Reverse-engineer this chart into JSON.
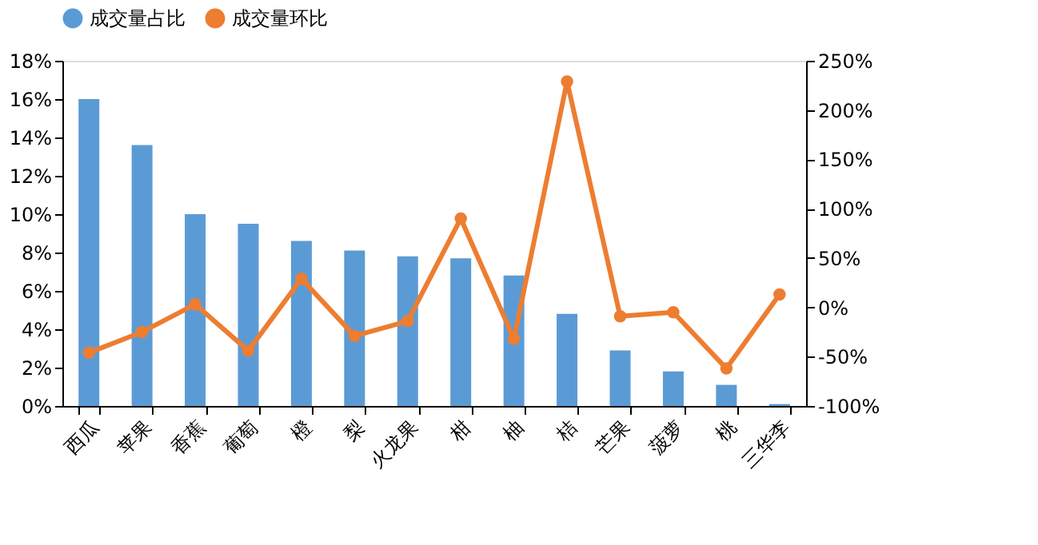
{
  "chart_data": {
    "type": "bar",
    "categories": [
      "西瓜",
      "苹果",
      "香蕉",
      "葡萄",
      "橙",
      "梨",
      "火龙果",
      "柑",
      "柚",
      "桔",
      "芒果",
      "菠萝",
      "桃",
      "三华李"
    ],
    "series": [
      {
        "name": "成交量占比",
        "color": "#5b9bd5",
        "values": [
          16.0,
          13.6,
          10.0,
          9.5,
          8.6,
          8.1,
          7.8,
          7.7,
          6.8,
          4.8,
          2.9,
          1.8,
          1.1,
          0.1
        ]
      },
      {
        "name": "成交量环比",
        "type": "line",
        "axis": "y2",
        "color": "#ed7d31",
        "marker": "circle",
        "values": [
          -46,
          -25,
          3,
          -44,
          29,
          -29,
          -14,
          90,
          -32,
          229,
          -9,
          -5,
          -62,
          13
        ]
      }
    ],
    "ylim": [
      0,
      18
    ],
    "yticks": [
      {
        "value": 0,
        "label": "0%"
      },
      {
        "value": 2,
        "label": "2%"
      },
      {
        "value": 4,
        "label": "4%"
      },
      {
        "value": 6,
        "label": "6%"
      },
      {
        "value": 8,
        "label": "8%"
      },
      {
        "value": 10,
        "label": "10%"
      },
      {
        "value": 12,
        "label": "12%"
      },
      {
        "value": 14,
        "label": "14%"
      },
      {
        "value": 16,
        "label": "16%"
      },
      {
        "value": 18,
        "label": "18%"
      }
    ],
    "y2lim": [
      -100,
      250
    ],
    "y2ticks": [
      {
        "value": -100,
        "label": "-100%"
      },
      {
        "value": -50,
        "label": "-50%"
      },
      {
        "value": 0,
        "label": "0%"
      },
      {
        "value": 50,
        "label": "50%"
      },
      {
        "value": 100,
        "label": "100%"
      },
      {
        "value": 150,
        "label": "150%"
      },
      {
        "value": 200,
        "label": "200%"
      },
      {
        "value": 250,
        "label": "250%"
      }
    ],
    "legend": "top",
    "grid": false
  }
}
